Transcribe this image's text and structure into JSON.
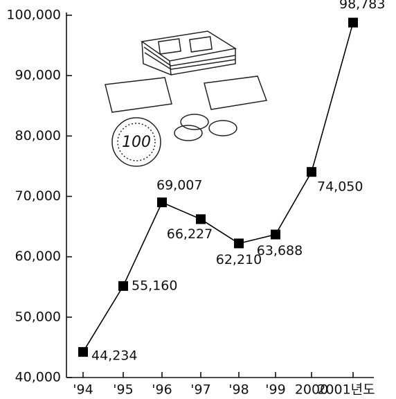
{
  "chart_data": {
    "type": "line",
    "categories": [
      "'94",
      "'95",
      "'96",
      "'97",
      "'98",
      "'99",
      "2000",
      "2001년도"
    ],
    "values": [
      44234,
      55160,
      69007,
      66227,
      62210,
      63688,
      74050,
      98783
    ],
    "value_labels": [
      "44,234",
      "55,160",
      "69,007",
      "66,227",
      "62,210",
      "63,688",
      "74,050",
      "98,783"
    ],
    "color": "#000000",
    "ylim": [
      40000,
      100000
    ],
    "yticks": [
      {
        "value": 40000,
        "label": "40,000"
      },
      {
        "value": 50000,
        "label": "50,000"
      },
      {
        "value": 60000,
        "label": "60,000"
      },
      {
        "value": 70000,
        "label": "70,000"
      },
      {
        "value": 80000,
        "label": "80,000"
      },
      {
        "value": 90000,
        "label": "90,000"
      },
      {
        "value": 100000,
        "label": "100,000"
      }
    ],
    "grid": false
  }
}
